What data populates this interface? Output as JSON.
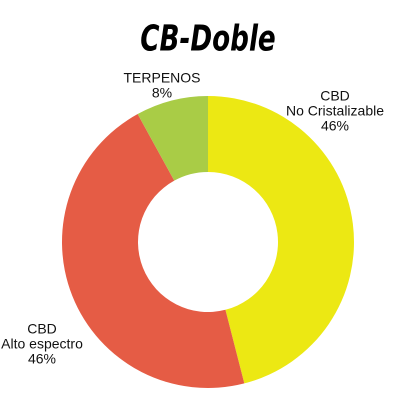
{
  "chart_data": {
    "type": "donut",
    "title": "CB-Doble",
    "categories": [
      [
        "CBD",
        "No Cristalizable"
      ],
      [
        "CBD",
        "Alto espectro"
      ],
      [
        "TERPENOS"
      ]
    ],
    "values": [
      46,
      46,
      8
    ],
    "value_labels": [
      "46%",
      "46%",
      "8%"
    ],
    "colors": [
      "#ece813",
      "#e55c45",
      "#a9cc46"
    ]
  }
}
